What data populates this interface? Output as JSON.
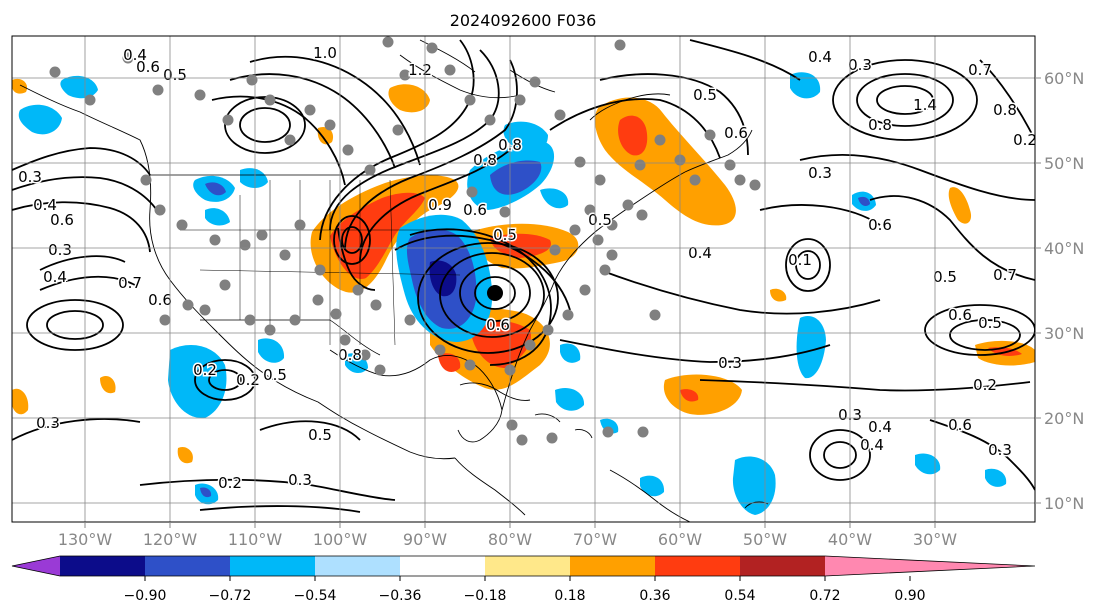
{
  "title": "2024092600 F036",
  "map": {
    "lon_labels": [
      "130°W",
      "120°W",
      "110°W",
      "100°W",
      "90°W",
      "80°W",
      "70°W",
      "60°W",
      "50°W",
      "40°W",
      "30°W"
    ],
    "lat_labels": [
      "60°N",
      "50°N",
      "40°N",
      "30°N",
      "20°N",
      "10°N"
    ],
    "contour_labels": [
      "0.4",
      "0.5",
      "0.6",
      "0.3",
      "0.4",
      "0.6",
      "0.3",
      "0.4",
      "0.7",
      "0.6",
      "0.2",
      "0.5",
      "0.3",
      "0.2",
      "0.5",
      "1.0",
      "1.2",
      "0.8",
      "0.9",
      "0.6",
      "0.5",
      "0.6",
      "0.8",
      "0.5",
      "0.4",
      "0.6",
      "0.1",
      "0.6",
      "0.7",
      "0.8",
      "0.3",
      "0.4",
      "0.6",
      "0.5",
      "0.2",
      "0.3",
      "0.4",
      "0.3",
      "0.3",
      "0.2",
      "0.2",
      "0.3",
      "0.8",
      "1.4",
      "0.8",
      "0.5",
      "0.4",
      "0.3",
      "0.6",
      "0.5",
      "0.7"
    ],
    "colors": {
      "land_outline": "#000000",
      "grid": "#888888",
      "station": "#808080",
      "center": "#000000"
    }
  },
  "colorbar": {
    "labels": [
      "−0.90",
      "−0.72",
      "−0.54",
      "−0.36",
      "−0.18",
      "0.18",
      "0.36",
      "0.54",
      "0.72",
      "0.90"
    ],
    "colors": [
      "#9a3ad6",
      "#0c0c8a",
      "#2e50c8",
      "#00b8f8",
      "#aee0ff",
      "#ffffff",
      "#ffe88a",
      "#ffa000",
      "#ff3c10",
      "#b22222",
      "#ff88b0"
    ]
  }
}
